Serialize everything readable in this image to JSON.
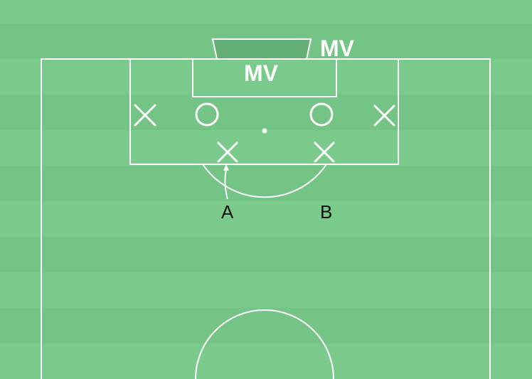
{
  "labels": {
    "goal_mv": "MV",
    "box_mv": "MV",
    "player_a": "A",
    "player_b": "B"
  },
  "colors": {
    "grass_light": "#7acb8b",
    "grass_dark": "#74c485",
    "goal_fill": "#63af75",
    "lines": "#ffffff",
    "text": "#111111"
  },
  "markers": [
    {
      "id": "cross-left-wide",
      "symbol": "cross"
    },
    {
      "id": "circle-left",
      "symbol": "circle"
    },
    {
      "id": "circle-right",
      "symbol": "circle"
    },
    {
      "id": "cross-right-wide",
      "symbol": "cross"
    },
    {
      "id": "cross-a",
      "symbol": "cross"
    },
    {
      "id": "cross-b",
      "symbol": "cross"
    }
  ]
}
